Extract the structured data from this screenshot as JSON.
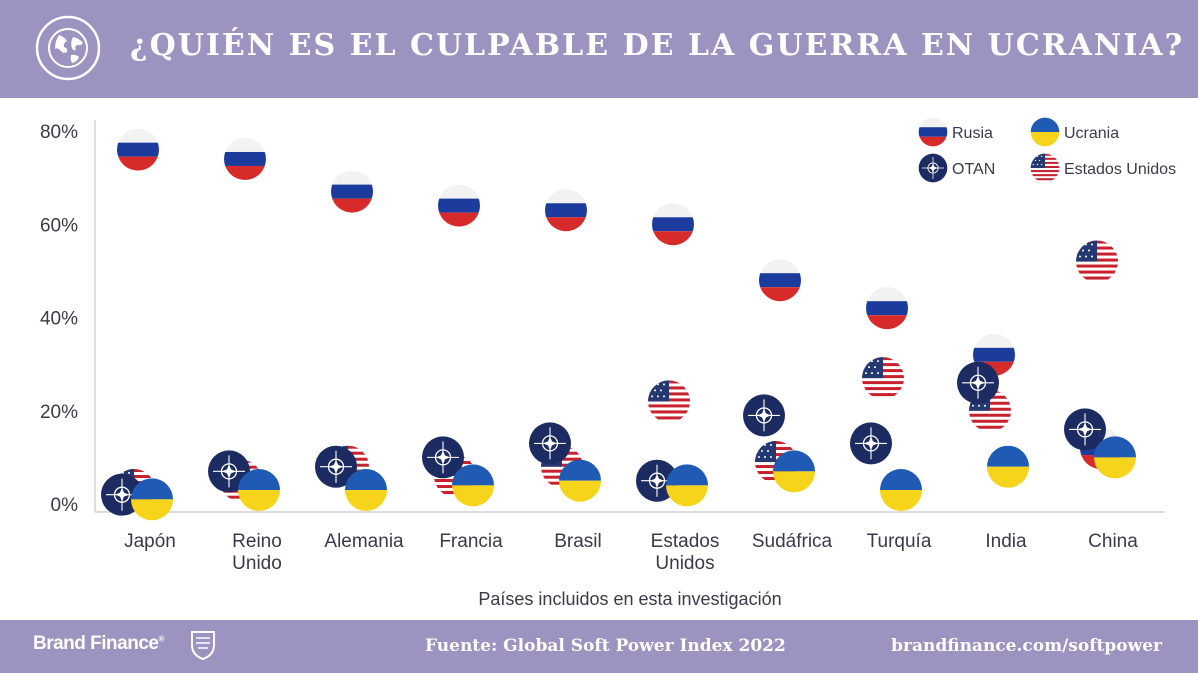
{
  "header": {
    "title": "¿QUIÉN ES EL CULPABLE DE LA GUERRA EN UCRANIA?",
    "icon": "globe-icon"
  },
  "footer": {
    "brand": "Brand Finance",
    "brand_mark": "®",
    "source": "Fuente: Global Soft Power Index 2022",
    "website": "brandfinance.com/softpower"
  },
  "colors": {
    "header_bg": "#9c93c0",
    "russia_red": "#d72b2b",
    "russia_blue": "#1b3c9c",
    "ukraine_blue": "#1f5bb4",
    "ukraine_yellow": "#f7d41c",
    "nato_navy": "#1d2b63",
    "usa_red": "#c8202c",
    "usa_navy": "#243872"
  },
  "chart_data": {
    "type": "scatter",
    "title": "¿QUIÉN ES EL CULPABLE DE LA GUERRA EN UCRANIA?",
    "xlabel": "Países incluidos en esta investigación",
    "ylabel": "",
    "ylim": [
      0,
      80
    ],
    "yticks": [
      "0%",
      "20%",
      "40%",
      "60%",
      "80%"
    ],
    "ytick_values": [
      0,
      20,
      40,
      60,
      80
    ],
    "grid": false,
    "legend_position": "top-right",
    "categories": [
      "Japón",
      "Reino Unido",
      "Alemania",
      "Francia",
      "Brasil",
      "Estados Unidos",
      "Sudáfrica",
      "Turquía",
      "India",
      "China"
    ],
    "category_lines": [
      [
        "Japón"
      ],
      [
        "Reino",
        "Unido"
      ],
      [
        "Alemania"
      ],
      [
        "Francia"
      ],
      [
        "Brasil"
      ],
      [
        "Estados",
        "Unidos"
      ],
      [
        "Sudáfrica"
      ],
      [
        "Turquía"
      ],
      [
        "India"
      ],
      [
        "China"
      ]
    ],
    "series": [
      {
        "name": "Rusia",
        "marker": "russia-flag",
        "values": [
          76,
          74,
          67,
          64,
          63,
          60,
          48,
          42,
          32,
          12
        ]
      },
      {
        "name": "Ucrania",
        "marker": "ukraine-flag",
        "values": [
          1,
          3,
          3,
          4,
          5,
          4,
          7,
          3,
          8,
          10
        ]
      },
      {
        "name": "OTAN",
        "marker": "nato-flag",
        "values": [
          2,
          7,
          8,
          10,
          13,
          5,
          19,
          13,
          26,
          16
        ]
      },
      {
        "name": "Estados Unidos",
        "marker": "usa-flag",
        "values": [
          3,
          5,
          8,
          6,
          8,
          22,
          9,
          27,
          20,
          52
        ]
      }
    ]
  }
}
